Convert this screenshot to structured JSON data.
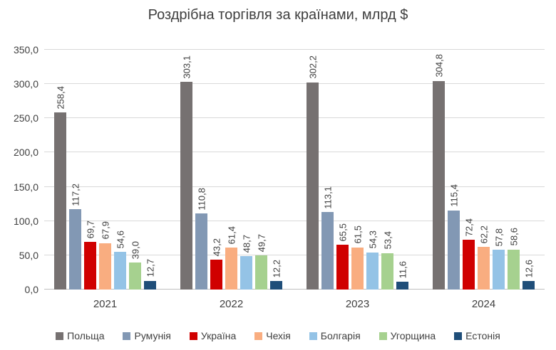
{
  "chart_data": {
    "type": "bar",
    "title": "Роздрібна торгівля за країнами, млрд $",
    "categories": [
      "2021",
      "2022",
      "2023",
      "2024"
    ],
    "series": [
      {
        "name": "Польща",
        "color": "#767171",
        "values": [
          258.4,
          303.1,
          302.2,
          304.8
        ]
      },
      {
        "name": "Румунія",
        "color": "#8298B4",
        "values": [
          117.2,
          110.8,
          113.1,
          115.4
        ]
      },
      {
        "name": "Україна",
        "color": "#D00000",
        "values": [
          69.7,
          43.2,
          65.5,
          72.4
        ]
      },
      {
        "name": "Чехія",
        "color": "#F9AD80",
        "values": [
          67.9,
          61.4,
          61.5,
          62.2
        ]
      },
      {
        "name": "Болгарія",
        "color": "#94C3E6",
        "values": [
          54.6,
          48.7,
          54.3,
          57.8
        ]
      },
      {
        "name": "Угорщина",
        "color": "#A6D18F",
        "values": [
          39.0,
          49.7,
          53.4,
          58.6
        ]
      },
      {
        "name": "Естонія",
        "color": "#1F4E79",
        "values": [
          12.7,
          12.2,
          11.6,
          12.6
        ]
      }
    ],
    "y_ticks": [
      "350,0",
      "300,0",
      "250,0",
      "200,0",
      "150,0",
      "100,0",
      "50,0",
      "0,0"
    ],
    "ylim": [
      0,
      350
    ],
    "grid": true,
    "legend_position": "bottom",
    "value_label_rotation": "vertical",
    "decimal_separator": ","
  },
  "colors": {
    "text": "#404040",
    "gridline": "#D9D9D9",
    "axis_line": "#BFBFBF",
    "background": "#FFFFFF"
  }
}
